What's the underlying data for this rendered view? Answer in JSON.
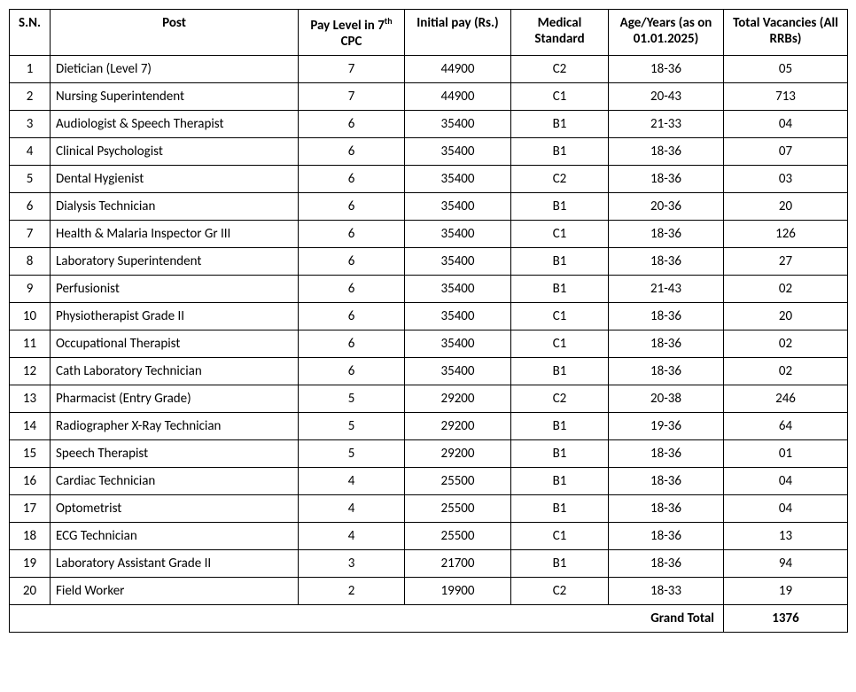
{
  "table": {
    "columns": {
      "sn": "S.N.",
      "post": "Post",
      "pay_level_pre": "Pay Level in 7",
      "pay_level_sup": "th",
      "pay_level_post": " CPC",
      "initial_pay": "Initial pay (Rs.)",
      "medical": "Medical Standard",
      "age": "Age/Years (as on 01.01.2025)",
      "vacancies": "Total Vacancies (All RRBs)"
    },
    "rows": [
      {
        "sn": "1",
        "post": "Dietician (Level 7)",
        "pay": "7",
        "init": "44900",
        "med": "C2",
        "age": "18-36",
        "vac": "05"
      },
      {
        "sn": "2",
        "post": "Nursing Superintendent",
        "pay": "7",
        "init": "44900",
        "med": "C1",
        "age": "20-43",
        "vac": "713"
      },
      {
        "sn": "3",
        "post": "Audiologist & Speech Therapist",
        "pay": "6",
        "init": "35400",
        "med": "B1",
        "age": "21-33",
        "vac": "04"
      },
      {
        "sn": "4",
        "post": "Clinical Psychologist",
        "pay": "6",
        "init": "35400",
        "med": "B1",
        "age": "18-36",
        "vac": "07"
      },
      {
        "sn": "5",
        "post": "Dental Hygienist",
        "pay": "6",
        "init": "35400",
        "med": "C2",
        "age": "18-36",
        "vac": "03"
      },
      {
        "sn": "6",
        "post": "Dialysis Technician",
        "pay": "6",
        "init": "35400",
        "med": "B1",
        "age": "20-36",
        "vac": "20"
      },
      {
        "sn": "7",
        "post": "Health & Malaria Inspector Gr III",
        "pay": "6",
        "init": "35400",
        "med": "C1",
        "age": "18-36",
        "vac": "126"
      },
      {
        "sn": "8",
        "post": "Laboratory Superintendent",
        "pay": "6",
        "init": "35400",
        "med": "B1",
        "age": "18-36",
        "vac": "27"
      },
      {
        "sn": "9",
        "post": "Perfusionist",
        "pay": "6",
        "init": "35400",
        "med": "B1",
        "age": "21-43",
        "vac": "02"
      },
      {
        "sn": "10",
        "post": "Physiotherapist Grade II",
        "pay": "6",
        "init": "35400",
        "med": "C1",
        "age": "18-36",
        "vac": "20"
      },
      {
        "sn": "11",
        "post": "Occupational Therapist",
        "pay": "6",
        "init": "35400",
        "med": "C1",
        "age": "18-36",
        "vac": "02"
      },
      {
        "sn": "12",
        "post": "Cath Laboratory Technician",
        "pay": "6",
        "init": "35400",
        "med": "B1",
        "age": "18-36",
        "vac": "02"
      },
      {
        "sn": "13",
        "post": "Pharmacist (Entry Grade)",
        "pay": "5",
        "init": "29200",
        "med": "C2",
        "age": "20-38",
        "vac": "246"
      },
      {
        "sn": "14",
        "post": "Radiographer X-Ray Technician",
        "pay": "5",
        "init": "29200",
        "med": "B1",
        "age": "19-36",
        "vac": "64"
      },
      {
        "sn": "15",
        "post": "Speech Therapist",
        "pay": "5",
        "init": "29200",
        "med": "B1",
        "age": "18-36",
        "vac": "01"
      },
      {
        "sn": "16",
        "post": "Cardiac Technician",
        "pay": "4",
        "init": "25500",
        "med": "B1",
        "age": "18-36",
        "vac": "04"
      },
      {
        "sn": "17",
        "post": "Optometrist",
        "pay": "4",
        "init": "25500",
        "med": "B1",
        "age": "18-36",
        "vac": "04"
      },
      {
        "sn": "18",
        "post": "ECG Technician",
        "pay": "4",
        "init": "25500",
        "med": "C1",
        "age": "18-36",
        "vac": "13"
      },
      {
        "sn": "19",
        "post": "Laboratory Assistant Grade II",
        "pay": "3",
        "init": "21700",
        "med": "B1",
        "age": "18-36",
        "vac": "94"
      },
      {
        "sn": "20",
        "post": "Field Worker",
        "pay": "2",
        "init": "19900",
        "med": "C2",
        "age": "18-33",
        "vac": "19"
      }
    ],
    "grand_total_label": "Grand Total",
    "grand_total_value": "1376"
  }
}
